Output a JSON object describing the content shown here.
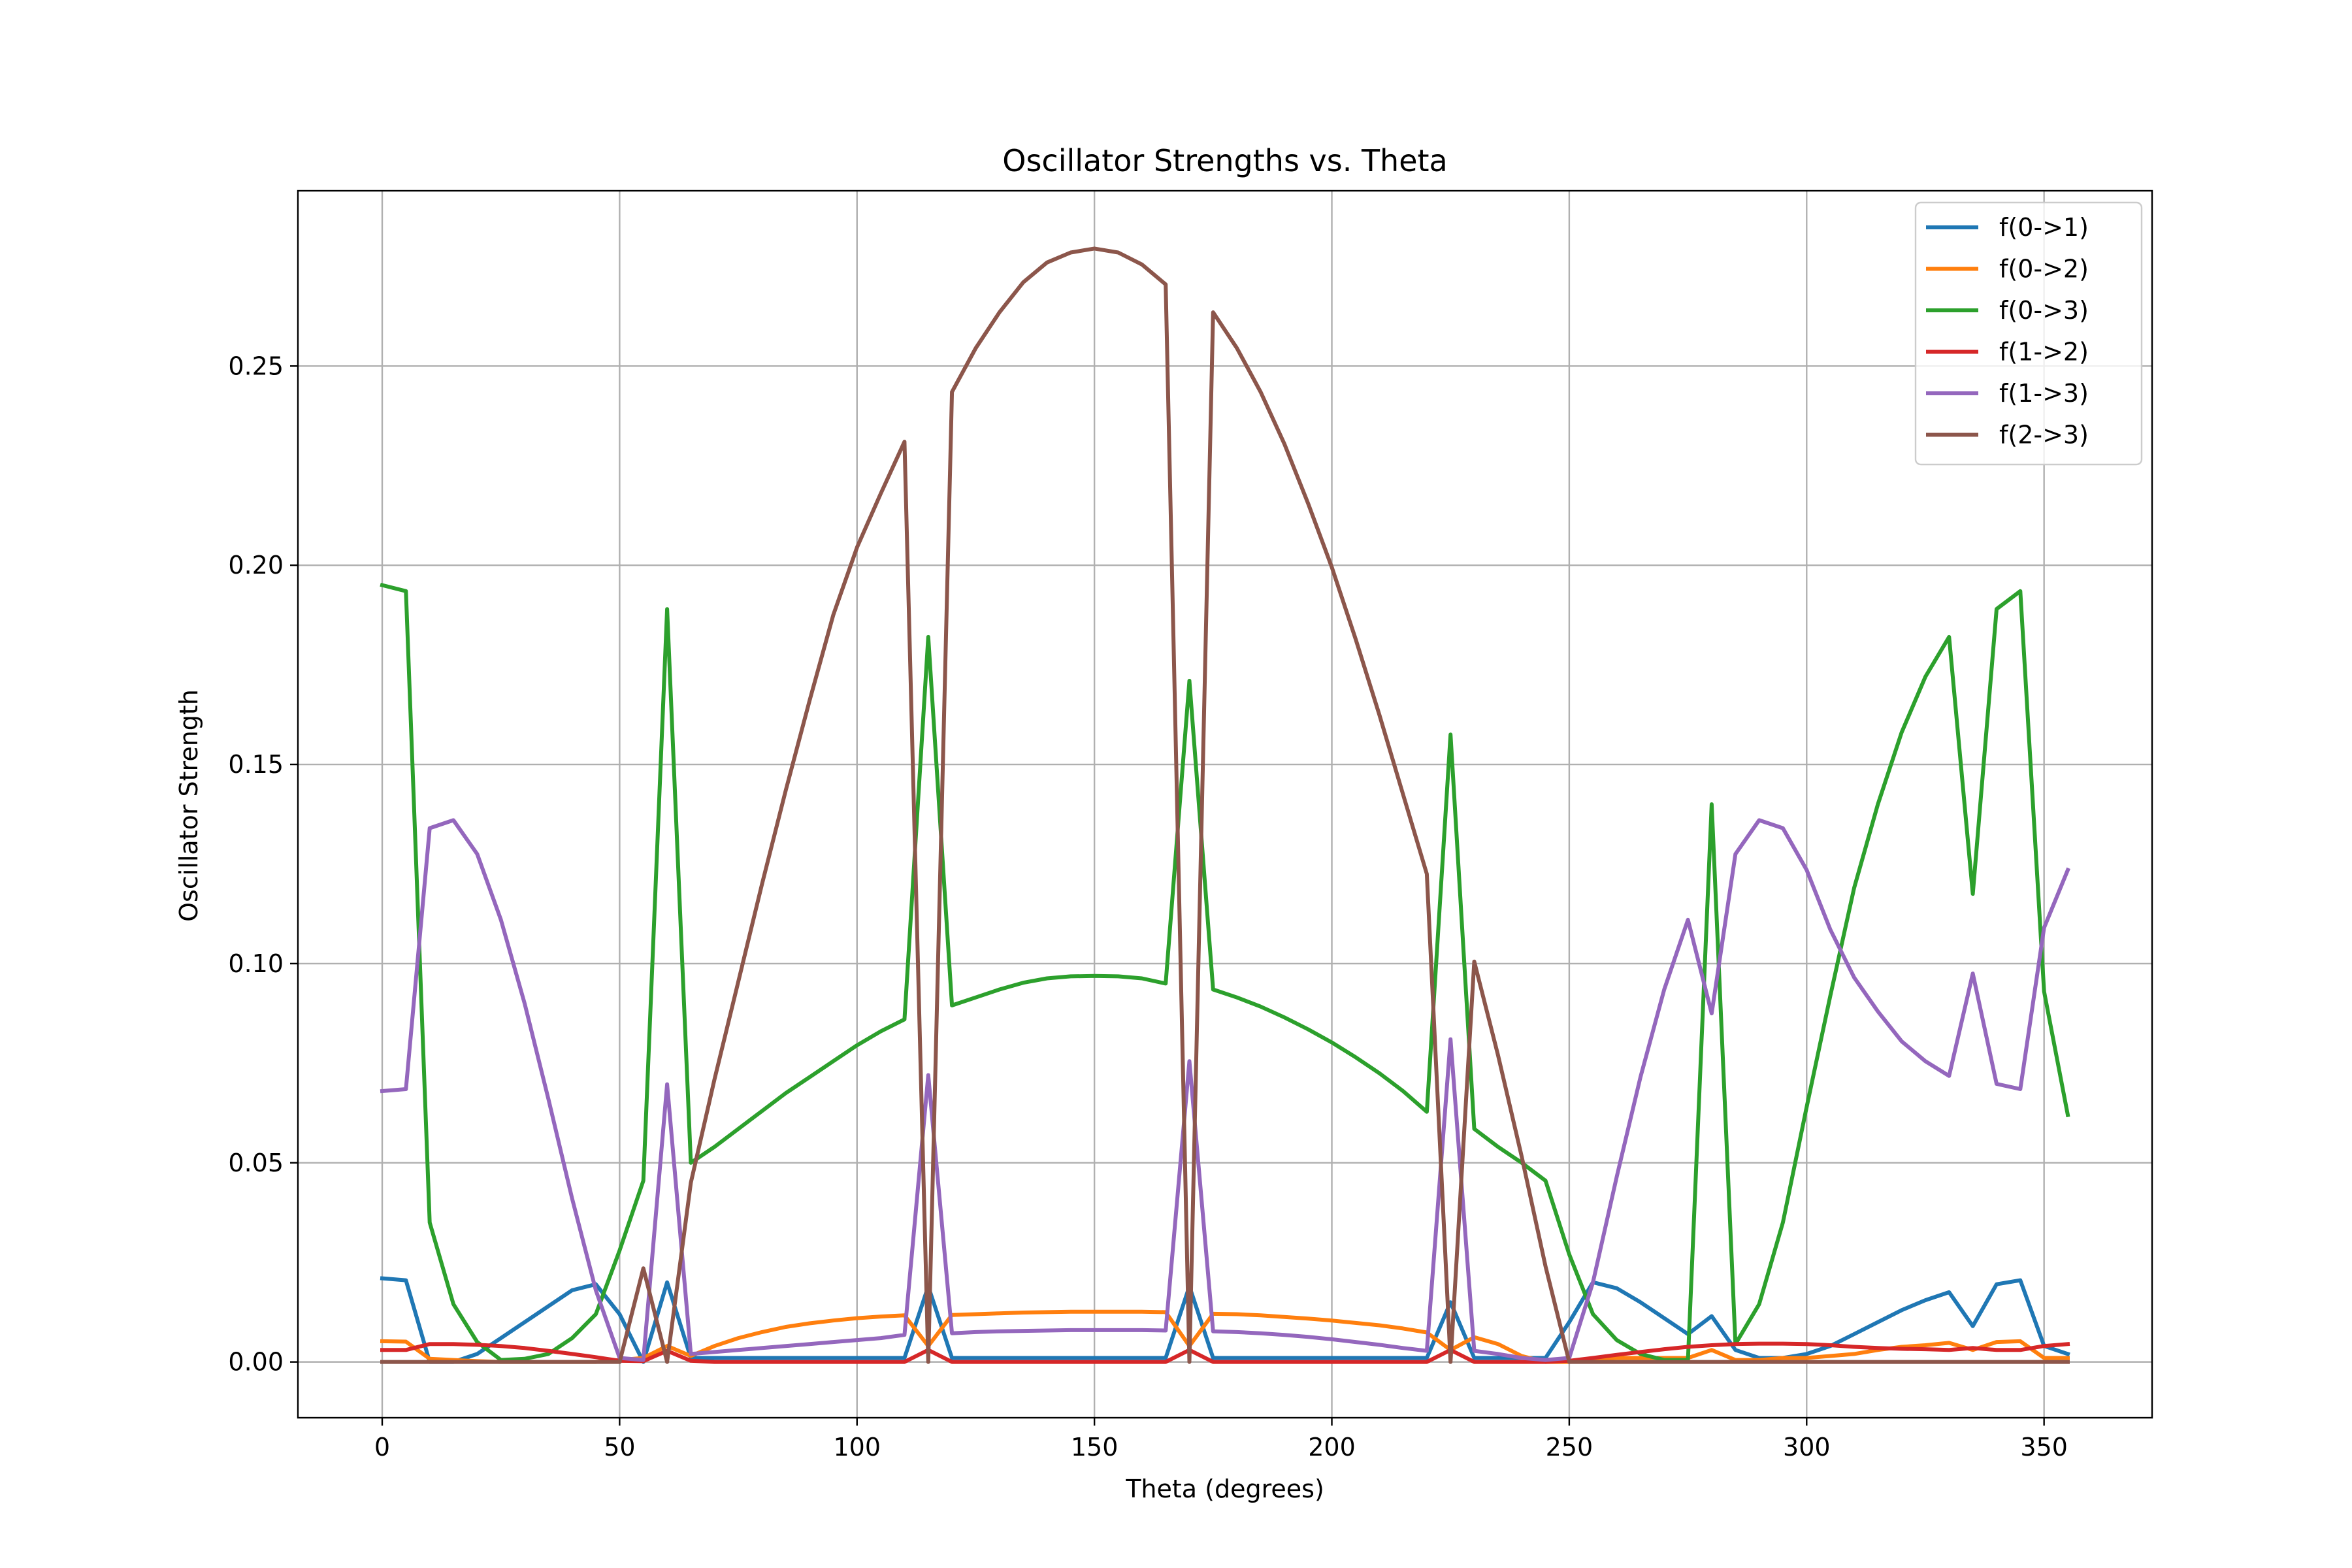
{
  "chart_data": {
    "type": "line",
    "title": "Oscillator Strengths vs. Theta",
    "xlabel": "Theta (degrees)",
    "ylabel": "Oscillator Strength",
    "xlim": [
      -17.75,
      372.75
    ],
    "ylim": [
      -0.014,
      0.294
    ],
    "xticks": [
      0,
      50,
      100,
      150,
      200,
      250,
      300,
      350
    ],
    "yticks": [
      0.0,
      0.05,
      0.1,
      0.15,
      0.2,
      0.25
    ],
    "ytick_labels": [
      "0.00",
      "0.05",
      "0.10",
      "0.15",
      "0.20",
      "0.25"
    ],
    "grid": true,
    "legend_position": "upper right",
    "x": [
      0,
      5,
      10,
      15,
      20,
      25,
      30,
      35,
      40,
      45,
      50,
      55,
      60,
      65,
      70,
      75,
      80,
      85,
      90,
      95,
      100,
      105,
      110,
      115,
      120,
      125,
      130,
      135,
      140,
      145,
      150,
      155,
      160,
      165,
      170,
      175,
      180,
      185,
      190,
      195,
      200,
      205,
      210,
      215,
      220,
      225,
      230,
      235,
      240,
      245,
      250,
      255,
      260,
      265,
      270,
      275,
      280,
      285,
      290,
      295,
      300,
      305,
      310,
      315,
      320,
      325,
      330,
      335,
      340,
      345,
      350,
      355
    ],
    "series": [
      {
        "name": "f(0->1)",
        "color": "#1f77b4",
        "values": [
          0.021,
          0.0205,
          0.0,
          0.0,
          0.002,
          0.006,
          0.01,
          0.014,
          0.018,
          0.0195,
          0.012,
          0.0,
          0.02,
          0.001,
          0.001,
          0.001,
          0.001,
          0.001,
          0.001,
          0.001,
          0.001,
          0.001,
          0.001,
          0.019,
          0.001,
          0.001,
          0.001,
          0.001,
          0.001,
          0.001,
          0.001,
          0.001,
          0.001,
          0.001,
          0.019,
          0.001,
          0.001,
          0.001,
          0.001,
          0.001,
          0.001,
          0.001,
          0.001,
          0.001,
          0.001,
          0.015,
          0.001,
          0.001,
          0.001,
          0.001,
          0.01,
          0.02,
          0.0185,
          0.015,
          0.011,
          0.007,
          0.0115,
          0.003,
          0.001,
          0.001,
          0.002,
          0.004,
          0.007,
          0.01,
          0.013,
          0.0155,
          0.0175,
          0.009,
          0.0195,
          0.0205,
          0.004,
          0.002
        ]
      },
      {
        "name": "f(0->2)",
        "color": "#ff7f0e",
        "values": [
          0.0052,
          0.0051,
          0.0008,
          0.0005,
          0.0002,
          0.0,
          0.0,
          0.0,
          0.0,
          0.0,
          0.0005,
          0.001,
          0.004,
          0.0015,
          0.004,
          0.006,
          0.0075,
          0.0088,
          0.0097,
          0.0104,
          0.011,
          0.0114,
          0.0117,
          0.004,
          0.0118,
          0.012,
          0.0122,
          0.0124,
          0.0125,
          0.0126,
          0.0126,
          0.0126,
          0.0126,
          0.0125,
          0.004,
          0.0121,
          0.012,
          0.0117,
          0.0113,
          0.0109,
          0.0104,
          0.0098,
          0.0092,
          0.0084,
          0.0074,
          0.003,
          0.0062,
          0.0045,
          0.0015,
          0.0,
          0.0,
          0.0005,
          0.001,
          0.001,
          0.001,
          0.001,
          0.003,
          0.0005,
          0.0005,
          0.001,
          0.001,
          0.0015,
          0.002,
          0.003,
          0.0038,
          0.0042,
          0.0048,
          0.003,
          0.005,
          0.0052,
          0.001,
          0.001
        ]
      },
      {
        "name": "f(0->3)",
        "color": "#2ca02c",
        "values": [
          0.195,
          0.1935,
          0.035,
          0.0145,
          0.005,
          0.0005,
          0.0008,
          0.002,
          0.006,
          0.012,
          0.028,
          0.0455,
          0.189,
          0.05,
          0.054,
          0.0585,
          0.063,
          0.0675,
          0.0715,
          0.0755,
          0.0795,
          0.083,
          0.086,
          0.182,
          0.0895,
          0.0915,
          0.0935,
          0.0952,
          0.0963,
          0.0968,
          0.0969,
          0.0968,
          0.0963,
          0.095,
          0.171,
          0.0935,
          0.0915,
          0.0892,
          0.0865,
          0.0835,
          0.0802,
          0.0765,
          0.0725,
          0.068,
          0.0628,
          0.1575,
          0.0585,
          0.054,
          0.05,
          0.0455,
          0.027,
          0.012,
          0.0055,
          0.002,
          0.0005,
          0.0005,
          0.14,
          0.0045,
          0.0145,
          0.035,
          0.064,
          0.092,
          0.119,
          0.14,
          0.158,
          0.172,
          0.182,
          0.1175,
          0.189,
          0.1935,
          0.093,
          0.062
        ]
      },
      {
        "name": "f(1->2)",
        "color": "#d62728",
        "values": [
          0.003,
          0.003,
          0.0045,
          0.0045,
          0.0043,
          0.004,
          0.0035,
          0.0028,
          0.002,
          0.0012,
          0.0003,
          0.0002,
          0.0028,
          0.0003,
          0.0,
          0.0,
          0.0,
          0.0,
          0.0,
          0.0,
          0.0,
          0.0,
          0.0,
          0.003,
          0.0,
          0.0,
          0.0,
          0.0,
          0.0,
          0.0,
          0.0,
          0.0,
          0.0,
          0.0,
          0.003,
          0.0,
          0.0,
          0.0,
          0.0,
          0.0,
          0.0,
          0.0,
          0.0,
          0.0,
          0.0,
          0.003,
          0.0,
          0.0,
          0.0,
          0.0,
          0.0003,
          0.001,
          0.0018,
          0.0025,
          0.0032,
          0.0038,
          0.0042,
          0.0045,
          0.0046,
          0.0046,
          0.0045,
          0.0042,
          0.0038,
          0.0035,
          0.0033,
          0.0032,
          0.003,
          0.0035,
          0.003,
          0.003,
          0.004,
          0.0045
        ]
      },
      {
        "name": "f(1->3)",
        "color": "#9467bd",
        "values": [
          0.068,
          0.0685,
          0.134,
          0.136,
          0.1275,
          0.111,
          0.09,
          0.066,
          0.041,
          0.018,
          0.001,
          0.0005,
          0.0697,
          0.002,
          0.0025,
          0.003,
          0.0035,
          0.004,
          0.0045,
          0.005,
          0.0055,
          0.006,
          0.0068,
          0.072,
          0.0072,
          0.0075,
          0.0077,
          0.0078,
          0.0079,
          0.008,
          0.008,
          0.008,
          0.008,
          0.0079,
          0.0755,
          0.0077,
          0.0075,
          0.0072,
          0.0068,
          0.0063,
          0.0057,
          0.005,
          0.0043,
          0.0035,
          0.0028,
          0.081,
          0.0028,
          0.002,
          0.001,
          0.0005,
          0.001,
          0.02,
          0.0465,
          0.0715,
          0.0935,
          0.111,
          0.0875,
          0.1275,
          0.136,
          0.134,
          0.1235,
          0.1085,
          0.0965,
          0.088,
          0.0805,
          0.0755,
          0.0718,
          0.0975,
          0.0698,
          0.0685,
          0.109,
          0.1235
        ]
      },
      {
        "name": "f(2->3)",
        "color": "#8c564b",
        "values": [
          0.0,
          0.0,
          0.0,
          0.0,
          0.0,
          0.0,
          0.0,
          0.0,
          0.0,
          0.0,
          0.0,
          0.0235,
          0.0,
          0.045,
          0.071,
          0.0955,
          0.12,
          0.1435,
          0.166,
          0.1875,
          0.2045,
          0.218,
          0.231,
          0.0,
          0.2435,
          0.2545,
          0.2635,
          0.271,
          0.276,
          0.2785,
          0.2795,
          0.2785,
          0.2755,
          0.2705,
          0.0,
          0.2635,
          0.2545,
          0.2435,
          0.2305,
          0.2155,
          0.1995,
          0.1815,
          0.1625,
          0.1425,
          0.1225,
          0.0,
          0.1005,
          0.077,
          0.0515,
          0.024,
          0.0,
          0.0,
          0.0,
          0.0,
          0.0,
          0.0,
          0.0,
          0.0,
          0.0,
          0.0,
          0.0,
          0.0,
          0.0,
          0.0,
          0.0,
          0.0,
          0.0,
          0.0,
          0.0,
          0.0,
          0.0,
          0.0
        ]
      }
    ]
  }
}
